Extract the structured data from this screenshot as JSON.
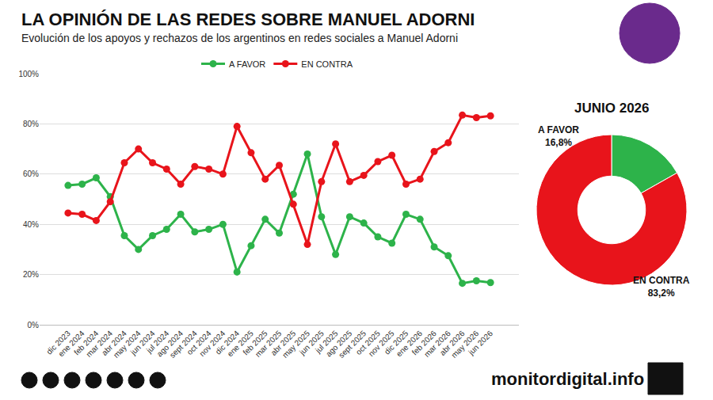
{
  "footer": "monitordigital.info",
  "chart_data": [
    {
      "type": "line",
      "title": "LA OPINIÓN DE LAS REDES SOBRE MANUEL ADORNI",
      "subtitle": "Evolución de los apoyos y rechazos de los argentinos en redes sociales a Manuel Adorni",
      "categories": [
        "dic 2023",
        "ene 2024",
        "feb 2024",
        "mar 2024",
        "abr 2024",
        "may 2024",
        "jun 2024",
        "jul 2024",
        "ago 2024",
        "sept 2024",
        "oct 2024",
        "nov 2024",
        "dic 2024",
        "ene 2025",
        "feb 2025",
        "mar 2025",
        "abr 2025",
        "may 2025",
        "jun 2025",
        "jul 2025",
        "ago 2025",
        "sept 2025",
        "oct 2025",
        "nov 2025",
        "dic 2025",
        "ene 2026",
        "feb 2026",
        "mar 2026",
        "abr 2026",
        "may 2026",
        "jun 2026"
      ],
      "series": [
        {
          "name": "A FAVOR",
          "color": "#2db34a",
          "values": [
            55.5,
            56,
            58.5,
            51,
            35.5,
            30,
            35.5,
            38,
            44,
            37,
            38,
            40,
            21,
            31.5,
            42,
            36.5,
            52,
            68,
            43,
            28,
            43,
            40.5,
            35,
            32.5,
            44,
            42,
            31,
            27.5,
            16.5,
            17.5,
            16.8
          ]
        },
        {
          "name": "EN CONTRA",
          "color": "#e8141b",
          "values": [
            44.5,
            44,
            41.5,
            49,
            64.5,
            70,
            64.5,
            62,
            56,
            63,
            62,
            60,
            79,
            68.5,
            58,
            63.5,
            48,
            32,
            57,
            72,
            57,
            59.5,
            65,
            67.5,
            56,
            58,
            69,
            72.5,
            83.5,
            82.5,
            83.2
          ]
        }
      ],
      "ylim": [
        0,
        100
      ],
      "yticks": [
        {
          "value": 0,
          "label": "0%"
        },
        {
          "value": 20,
          "label": "20%"
        },
        {
          "value": 40,
          "label": "40%"
        },
        {
          "value": 60,
          "label": "60%"
        },
        {
          "value": 80,
          "label": "80%"
        },
        {
          "value": 100,
          "label": "100%"
        }
      ],
      "grid": true,
      "legend": "top",
      "marker": "circle"
    },
    {
      "type": "donut",
      "title": "JUNIO 2026",
      "categories": [
        "A FAVOR",
        "EN CONTRA"
      ],
      "values": [
        16.8,
        83.2
      ],
      "value_labels": [
        "16,8%",
        "83,2%"
      ],
      "colors": [
        "#2db34a",
        "#e8141b"
      ],
      "data_labels": true
    }
  ]
}
